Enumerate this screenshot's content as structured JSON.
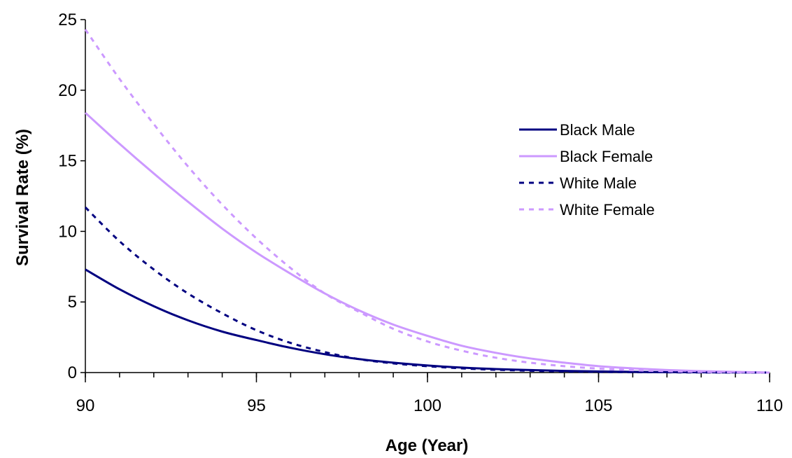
{
  "chart_data": {
    "type": "line",
    "title": "",
    "xlabel": "Age (Year)",
    "ylabel": "Survival Rate (%)",
    "xlim": [
      90,
      110
    ],
    "ylim": [
      0,
      25
    ],
    "x_ticks": [
      90,
      95,
      100,
      105,
      110
    ],
    "y_ticks": [
      0,
      5,
      10,
      15,
      20,
      25
    ],
    "x_minor_step": 1,
    "grid": false,
    "legend_position": "right",
    "x": [
      90,
      91,
      92,
      93,
      94,
      95,
      96,
      97,
      98,
      99,
      100,
      101,
      102,
      103,
      104,
      105,
      106,
      107,
      108,
      109,
      110
    ],
    "series": [
      {
        "name": "Black Male",
        "color": "#000080",
        "dash": "solid",
        "values": [
          7.3,
          5.9,
          4.7,
          3.7,
          2.9,
          2.3,
          1.75,
          1.3,
          0.95,
          0.7,
          0.5,
          0.35,
          0.25,
          0.18,
          0.12,
          0.08,
          0.05,
          0.03,
          0.02,
          0.01,
          0.0
        ]
      },
      {
        "name": "Black Female",
        "color": "#cc99ff",
        "dash": "solid",
        "values": [
          18.4,
          16.2,
          14.1,
          12.1,
          10.2,
          8.5,
          7.0,
          5.6,
          4.4,
          3.4,
          2.6,
          1.9,
          1.4,
          1.0,
          0.7,
          0.45,
          0.3,
          0.18,
          0.1,
          0.05,
          0.0
        ]
      },
      {
        "name": "White Male",
        "color": "#000080",
        "dash": "dashed",
        "values": [
          11.7,
          9.3,
          7.3,
          5.6,
          4.2,
          3.0,
          2.1,
          1.45,
          0.95,
          0.65,
          0.45,
          0.3,
          0.2,
          0.13,
          0.08,
          0.05,
          0.03,
          0.02,
          0.01,
          0.0,
          0.0
        ]
      },
      {
        "name": "White Female",
        "color": "#cc99ff",
        "dash": "dashed",
        "values": [
          24.3,
          20.8,
          17.6,
          14.6,
          11.9,
          9.5,
          7.4,
          5.6,
          4.3,
          3.1,
          2.2,
          1.55,
          1.05,
          0.7,
          0.45,
          0.28,
          0.17,
          0.1,
          0.05,
          0.02,
          0.0
        ]
      }
    ]
  }
}
